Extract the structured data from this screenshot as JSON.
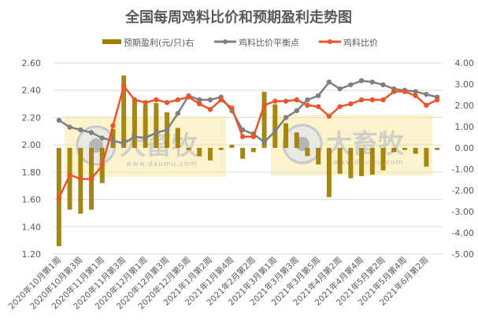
{
  "chart_data": {
    "type": "bar+line",
    "title": "全国每周鸡料比价和预期盈利走势图",
    "legend": [
      "预期盈利(元/只)右",
      "鸡料比价平衡点",
      "鸡料比价"
    ],
    "legend_placement": "top",
    "grid": true,
    "categories": [
      "2020年10月第1周",
      "",
      "2020年10月第3周",
      "",
      "2020年11月第1周",
      "",
      "2020年11月第3周",
      "",
      "2020年12月第1周",
      "",
      "2020年12月第3周",
      "",
      "2020年12月第5周",
      "",
      "2021年1月第2周",
      "",
      "2021年1月第4周",
      "",
      "2021年2月第2周",
      "",
      "2021年3月第1周",
      "",
      "2021年3月第3周",
      "",
      "2021年3月第5周",
      "",
      "2021年4月第2周",
      "",
      "2021年4月第4周",
      "",
      "2021年5月第2周",
      "",
      "2021年5月第4周",
      "",
      "2021年6月第2周",
      ""
    ],
    "y_left": {
      "min": 1.2,
      "max": 2.6,
      "step": 0.2,
      "ticks": [
        "1.20",
        "1.40",
        "1.60",
        "1.80",
        "2.00",
        "2.20",
        "2.40",
        "2.60"
      ]
    },
    "y_right": {
      "min": -5,
      "max": 4,
      "step": 1,
      "ticks": [
        "-5.00",
        "-4.00",
        "-3.00",
        "-2.00",
        "-1.00",
        "0.00",
        "1.00",
        "2.00",
        "3.00",
        "4.00"
      ]
    },
    "series": [
      {
        "name": "预期盈利(元/只)右",
        "type": "bar",
        "axis": "right",
        "color": "#a07d00",
        "values": [
          -4.63,
          -2.91,
          -3.1,
          -2.91,
          -1.66,
          0.89,
          3.41,
          2.21,
          2.03,
          2.11,
          1.68,
          0.94,
          -0.1,
          -0.4,
          -0.59,
          -0.1,
          0.15,
          -0.51,
          -0.2,
          2.64,
          2.05,
          1.16,
          0.73,
          -0.38,
          -0.78,
          -2.32,
          -1.22,
          -1.43,
          -1.33,
          -1.26,
          -1.06,
          -0.2,
          -0.1,
          -0.28,
          -0.88,
          -0.1
        ]
      },
      {
        "name": "鸡料比价平衡点",
        "type": "line",
        "axis": "left",
        "color": "#7f7f7f",
        "values": [
          2.18,
          2.13,
          2.11,
          2.09,
          2.05,
          2.03,
          2.01,
          2.06,
          2.05,
          2.09,
          2.11,
          2.23,
          2.36,
          2.33,
          2.33,
          2.35,
          2.25,
          2.11,
          2.08,
          2.02,
          2.1,
          2.2,
          2.25,
          2.33,
          2.36,
          2.46,
          2.41,
          2.44,
          2.47,
          2.46,
          2.44,
          2.41,
          2.4,
          2.39,
          2.37,
          2.35
        ]
      },
      {
        "name": "鸡料比价",
        "type": "line",
        "axis": "left",
        "color": "#e9552a",
        "values": [
          1.61,
          1.78,
          1.75,
          1.75,
          1.85,
          2.14,
          2.43,
          2.33,
          2.31,
          2.33,
          2.31,
          2.33,
          2.35,
          2.3,
          2.26,
          2.33,
          2.27,
          2.06,
          2.06,
          2.29,
          2.32,
          2.32,
          2.33,
          2.29,
          2.28,
          2.21,
          2.28,
          2.3,
          2.33,
          2.33,
          2.33,
          2.39,
          2.39,
          2.36,
          2.29,
          2.33
        ]
      }
    ]
  },
  "watermark": {
    "brand": "大畜牧",
    "url": "www.dxumu.com"
  }
}
